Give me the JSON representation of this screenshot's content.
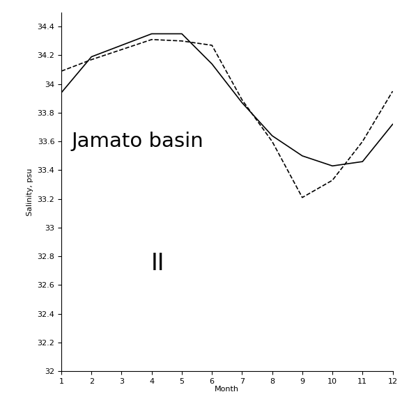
{
  "chart_data": {
    "type": "line",
    "x_label": "Month",
    "y_label": "Salinity, psu",
    "annotations": [
      "Jamato basin",
      "II"
    ],
    "x": [
      1,
      2,
      3,
      4,
      5,
      6,
      7,
      8,
      9,
      10,
      11,
      12
    ],
    "series": [
      {
        "color": "#000000",
        "line_style": "solid",
        "values": [
          33.94,
          34.19,
          34.27,
          34.35,
          34.35,
          34.14,
          33.87,
          33.64,
          33.5,
          33.43,
          33.46,
          33.72
        ]
      },
      {
        "color": "#000000",
        "line_style": "dashed",
        "values": [
          34.09,
          34.17,
          34.24,
          34.31,
          34.3,
          34.27,
          33.89,
          33.6,
          33.21,
          33.33,
          33.6,
          33.95
        ]
      }
    ],
    "xlim": [
      1,
      12
    ],
    "xticks": [
      1,
      2,
      3,
      4,
      5,
      6,
      7,
      8,
      9,
      10,
      11,
      12
    ],
    "ylim": [
      32,
      34.5
    ],
    "yticks": [
      {
        "value": 32,
        "label": "32"
      },
      32.2,
      32.4,
      32.6,
      32.8,
      {
        "value": 33,
        "label": "33"
      },
      33.2,
      33.4,
      33.6,
      33.8,
      {
        "value": 34,
        "label": "34"
      },
      34.2,
      34.4
    ],
    "grid": false
  }
}
